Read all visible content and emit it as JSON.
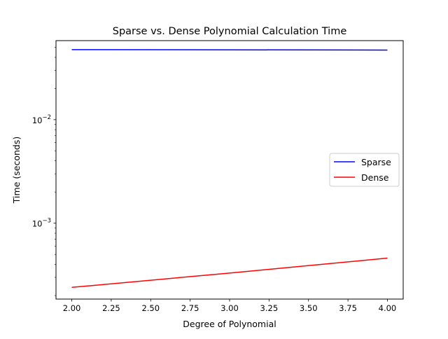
{
  "chart_data": {
    "type": "line",
    "title": "Sparse vs. Dense Polynomial Calculation Time",
    "xlabel": "Degree of Polynomial",
    "ylabel": "Time (seconds)",
    "xscale": "linear",
    "yscale": "log",
    "xlim": [
      1.9,
      4.1
    ],
    "ylim": [
      0.000185,
      0.058
    ],
    "x_ticks": [
      2.0,
      2.25,
      2.5,
      2.75,
      3.0,
      3.25,
      3.5,
      3.75,
      4.0
    ],
    "x_tick_labels": [
      "2.00",
      "2.25",
      "2.50",
      "2.75",
      "3.00",
      "3.25",
      "3.50",
      "3.75",
      "4.00"
    ],
    "y_major_ticks": [
      0.001,
      0.01
    ],
    "y_major_tick_labels": [
      {
        "base": "10",
        "exp": "−3"
      },
      {
        "base": "10",
        "exp": "−2"
      }
    ],
    "y_minor_ticks": [
      0.0002,
      0.0003,
      0.0004,
      0.0005,
      0.0006,
      0.0007,
      0.0008,
      0.0009,
      0.002,
      0.003,
      0.004,
      0.005,
      0.006,
      0.007,
      0.008,
      0.009,
      0.02,
      0.03,
      0.04,
      0.05
    ],
    "grid": false,
    "legend_position": "center-right",
    "series": [
      {
        "name": "Sparse",
        "color": "#0000ff",
        "x": [
          2,
          3,
          4
        ],
        "y": [
          0.0475,
          0.0473,
          0.047
        ]
      },
      {
        "name": "Dense",
        "color": "#ff0000",
        "x": [
          2,
          3,
          4
        ],
        "y": [
          0.00024,
          0.00033,
          0.00046
        ]
      }
    ]
  }
}
